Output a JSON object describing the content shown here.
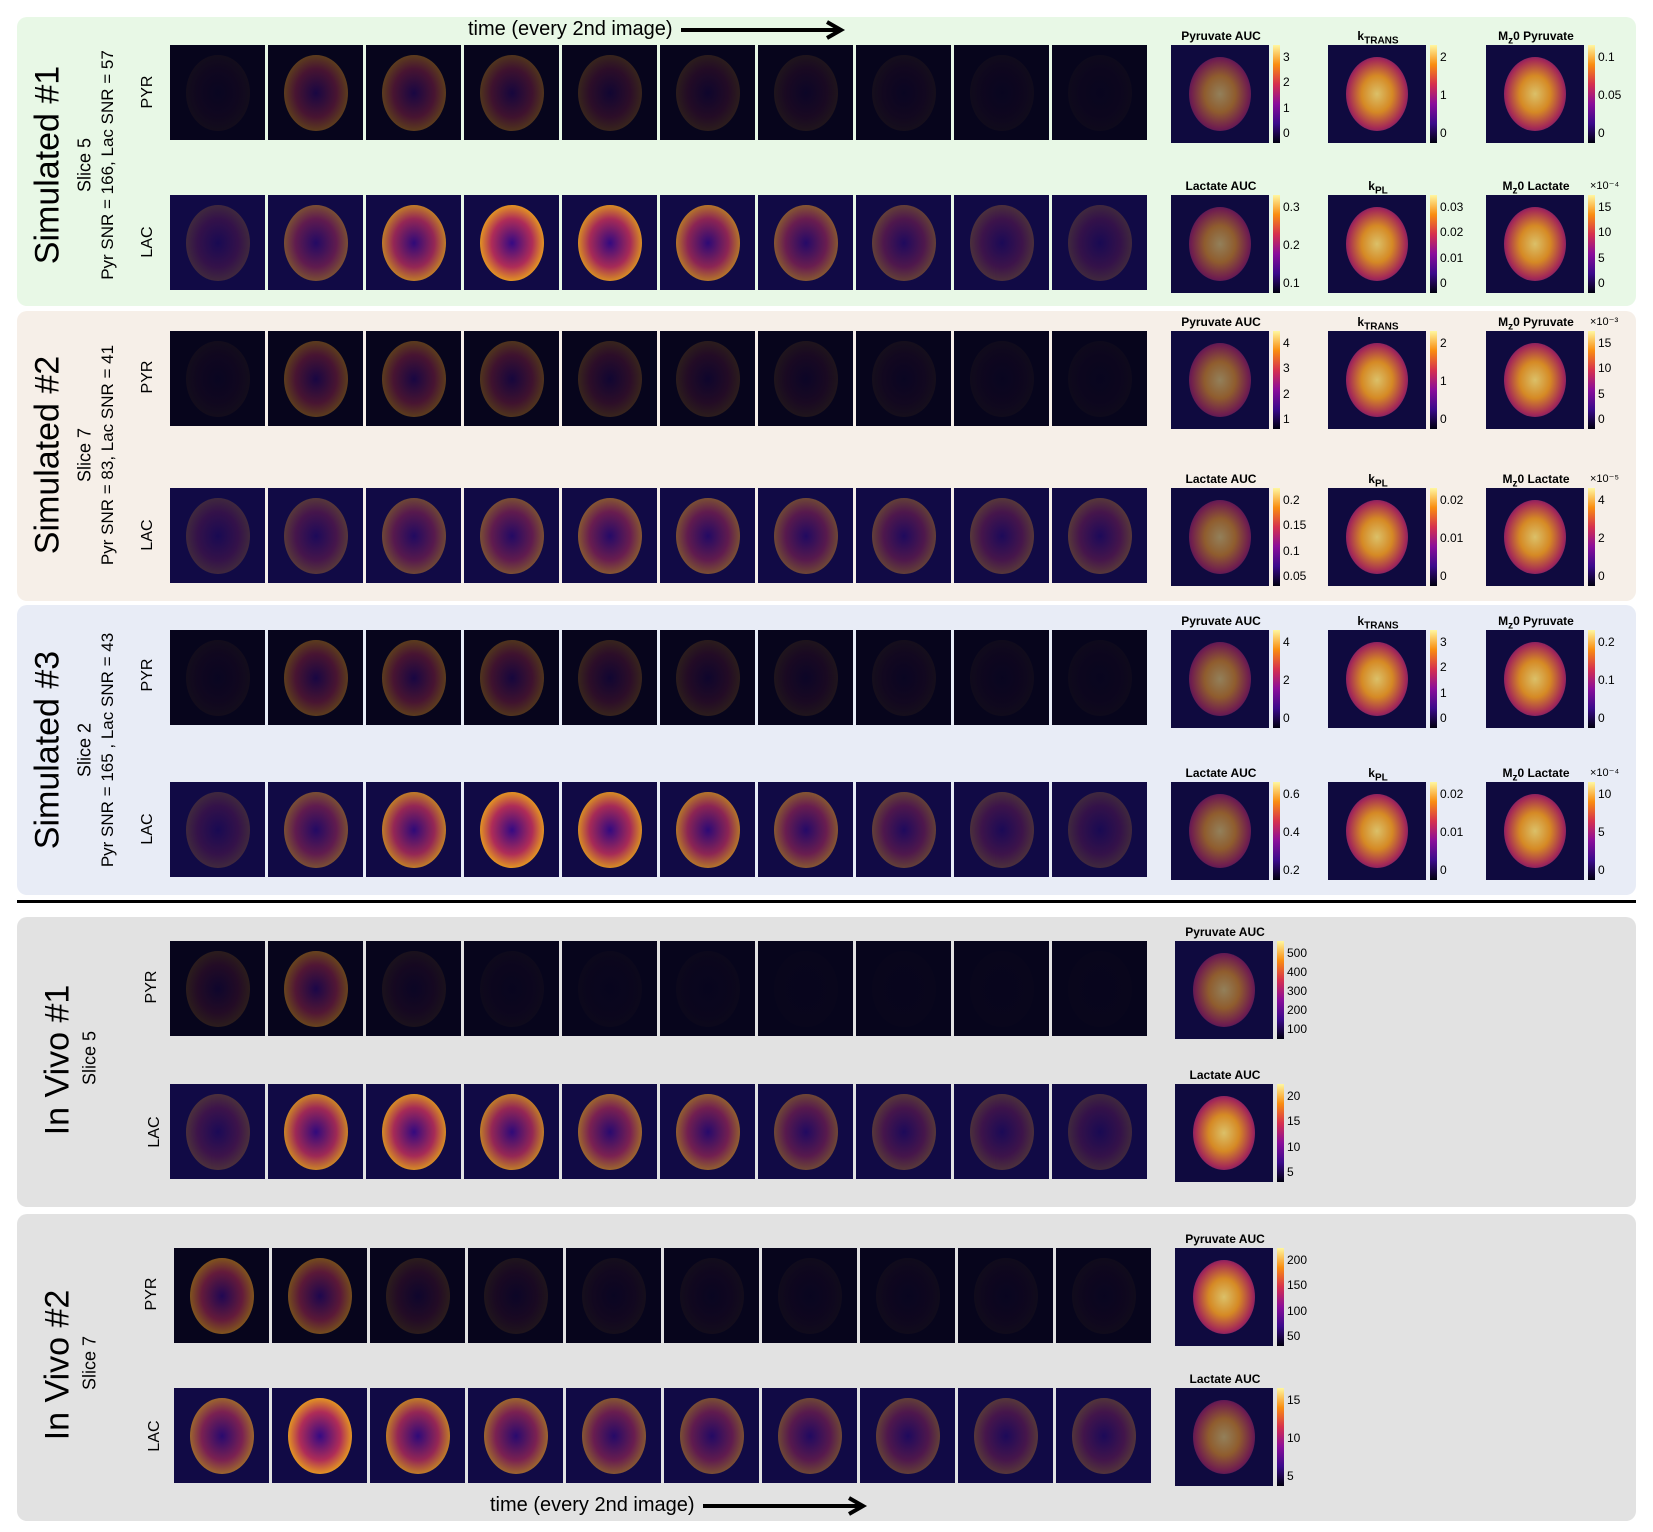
{
  "panels": {
    "sim1": {
      "title": "Simulated #1",
      "slice": "Slice 5",
      "snr": "Pyr SNR = 166, Lac SNR = 57"
    },
    "sim2": {
      "title": "Simulated #2",
      "slice": "Slice 7",
      "snr": "Pyr SNR = 83, Lac SNR = 41"
    },
    "sim3": {
      "title": "Simulated #3",
      "slice": "Slice 2",
      "snr": "Pyr SNR = 165 , Lac SNR = 43"
    },
    "vivo1": {
      "title": "In Vivo #1",
      "slice": "Slice 5"
    },
    "vivo2": {
      "title": "In Vivo #2",
      "slice": "Slice 7"
    }
  },
  "rows": {
    "pyr": "PYR",
    "lac": "LAC"
  },
  "time_label": "time (every 2nd image)",
  "maps": {
    "pyr_auc": "Pyruvate AUC",
    "lac_auc": "Lactate AUC",
    "ktrans_k": "k",
    "ktrans_sub": "TRANS",
    "kpl_k": "k",
    "kpl_sub": "PL",
    "mz_m": "M",
    "mz_sub": "z",
    "mz_pyr_rest": "0 Pyruvate",
    "mz_lac_rest": "0 Lactate"
  },
  "ticks": {
    "s1_pyr_auc": [
      "3",
      "2",
      "1",
      "0"
    ],
    "s1_ktrans": [
      "2",
      "1",
      "0"
    ],
    "s1_mz_pyr": [
      "0.1",
      "0.05",
      "0"
    ],
    "s1_lac_auc": [
      "0.3",
      "0.2",
      "0.1"
    ],
    "s1_kpl": [
      "0.03",
      "0.02",
      "0.01",
      "0"
    ],
    "s1_mz_lac": [
      "15",
      "10",
      "5",
      "0"
    ],
    "s1_mz_lac_exp": "×10⁻⁴",
    "s2_pyr_auc": [
      "4",
      "3",
      "2",
      "1"
    ],
    "s2_ktrans": [
      "2",
      "1",
      "0"
    ],
    "s2_mz_pyr": [
      "15",
      "10",
      "5",
      "0"
    ],
    "s2_mz_pyr_exp": "×10⁻³",
    "s2_lac_auc": [
      "0.2",
      "0.15",
      "0.1",
      "0.05"
    ],
    "s2_kpl": [
      "0.02",
      "0.01",
      "0"
    ],
    "s2_mz_lac": [
      "4",
      "2",
      "0"
    ],
    "s2_mz_lac_exp": "×10⁻⁵",
    "s3_pyr_auc": [
      "4",
      "2",
      "0"
    ],
    "s3_ktrans": [
      "3",
      "2",
      "1",
      "0"
    ],
    "s3_mz_pyr": [
      "0.2",
      "0.1",
      "0"
    ],
    "s3_lac_auc": [
      "0.6",
      "0.4",
      "0.2"
    ],
    "s3_kpl": [
      "0.02",
      "0.01",
      "0"
    ],
    "s3_mz_lac": [
      "10",
      "5",
      "0"
    ],
    "s3_mz_lac_exp": "×10⁻⁴",
    "v1_pyr_auc": [
      "500",
      "400",
      "300",
      "200",
      "100"
    ],
    "v1_lac_auc": [
      "20",
      "15",
      "10",
      "5"
    ],
    "v2_pyr_auc": [
      "200",
      "150",
      "100",
      "50"
    ],
    "v2_lac_auc": [
      "15",
      "10",
      "5"
    ]
  },
  "colors": {
    "sim1": "#e8f8e6",
    "sim2": "#f6efe8",
    "sim3": "#e8ecf6",
    "vivo": "#e2e2e2",
    "colormap": "inferno/plasma"
  }
}
